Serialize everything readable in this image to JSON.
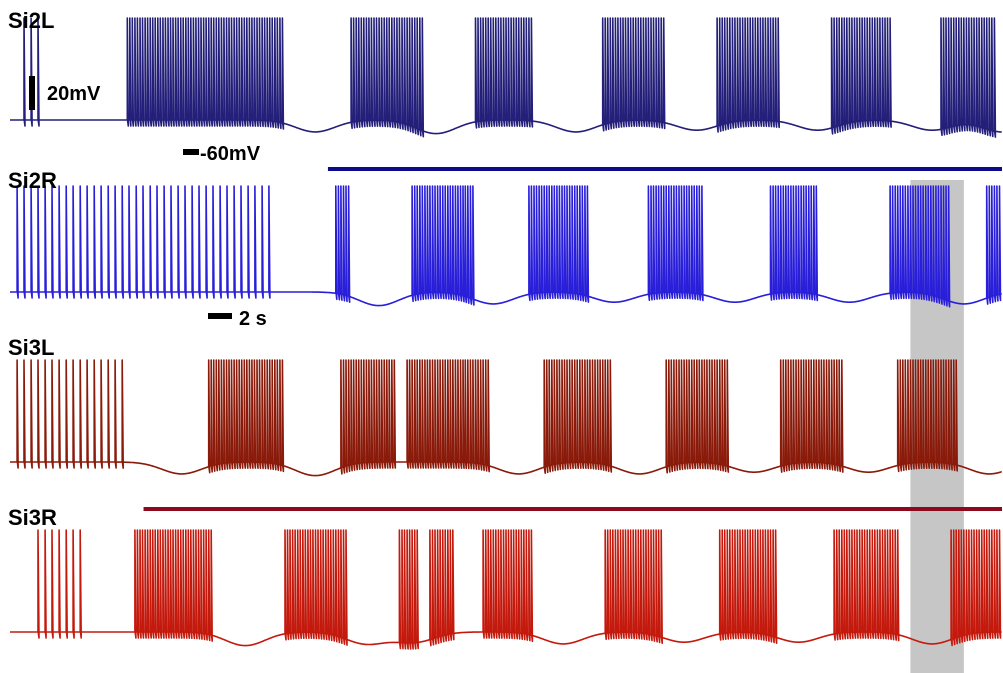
{
  "chart_data": {
    "type": "line",
    "description_units": {
      "x": "s",
      "y": "mV"
    },
    "xlim": [
      0,
      78
    ],
    "scale_bars": {
      "voltage": {
        "label": "20mV",
        "value": 20
      },
      "reference": {
        "label": "-60mV",
        "value": -60
      },
      "time": {
        "label": "2 s",
        "value": 2
      }
    },
    "highlight_window": {
      "x_start": 70.8,
      "x_end": 75.0,
      "color": "#c6c6c6"
    },
    "stimulus_bars": [
      {
        "trace": "Si2L",
        "x_start": 25.0,
        "x_end": 78.0,
        "color": "#0b0b8c"
      },
      {
        "trace": "Si3L",
        "x_start": 10.5,
        "x_end": 78.0,
        "color": "#8b0a1e"
      }
    ],
    "series": [
      {
        "name": "Si2L",
        "color": "#24207a",
        "baseline_mV": -55,
        "tonic": [
          [
            1.0,
            2.5
          ]
        ],
        "bursts": [
          [
            9.2,
            21.5
          ],
          [
            26.8,
            32.6
          ],
          [
            36.5,
            41.2
          ],
          [
            46.5,
            51.6
          ],
          [
            55.5,
            60.6
          ],
          [
            64.5,
            69.3
          ],
          [
            73.2,
            77.5
          ]
        ],
        "troughs": [
          [
            24.0,
            -62
          ],
          [
            33.5,
            -63
          ],
          [
            44.5,
            -62
          ],
          [
            54.0,
            -61
          ],
          [
            63.5,
            -61
          ],
          [
            72.5,
            -61
          ],
          [
            78.0,
            -62
          ]
        ]
      },
      {
        "name": "Si2R",
        "color": "#2a1fd9",
        "baseline_mV": -55,
        "tonic": [
          [
            0.5,
            20.8
          ]
        ],
        "bursts": [
          [
            25.6,
            26.8
          ],
          [
            31.6,
            36.5
          ],
          [
            40.8,
            45.5
          ],
          [
            50.2,
            54.6
          ],
          [
            59.8,
            63.6
          ],
          [
            69.2,
            74.0
          ],
          [
            76.8,
            78.0
          ]
        ],
        "troughs": [
          [
            29.0,
            -63
          ],
          [
            38.0,
            -62
          ],
          [
            47.5,
            -61
          ],
          [
            57.0,
            -61
          ],
          [
            66.0,
            -61
          ],
          [
            75.0,
            -62
          ]
        ]
      },
      {
        "name": "Si3L",
        "color": "#8a1a0a",
        "baseline_mV": -55,
        "tonic": [
          [
            0.5,
            9.2
          ]
        ],
        "bursts": [
          [
            15.6,
            21.5
          ],
          [
            26.0,
            30.3
          ],
          [
            31.2,
            37.8
          ],
          [
            42.0,
            47.4
          ],
          [
            51.6,
            56.5
          ],
          [
            60.5,
            65.5
          ],
          [
            69.8,
            74.5
          ]
        ],
        "troughs": [
          [
            13.5,
            -62
          ],
          [
            24.0,
            -63
          ],
          [
            40.0,
            -62
          ],
          [
            49.5,
            -62
          ],
          [
            58.5,
            -61
          ],
          [
            67.5,
            -61
          ],
          [
            77.0,
            -62
          ]
        ]
      },
      {
        "name": "Si3R",
        "color": "#c41a0d",
        "baseline_mV": -55,
        "tonic": [
          [
            2.0,
            5.8
          ]
        ],
        "bursts": [
          [
            9.8,
            16.0
          ],
          [
            21.5,
            26.5
          ],
          [
            30.5,
            32.2
          ],
          [
            33.0,
            35.0
          ],
          [
            37.2,
            41.2
          ],
          [
            46.8,
            51.3
          ],
          [
            55.8,
            60.3
          ],
          [
            64.8,
            70.0
          ],
          [
            74.0,
            78.0
          ]
        ],
        "troughs": [
          [
            18.5,
            -63
          ],
          [
            28.0,
            -62
          ],
          [
            31.8,
            -61
          ],
          [
            43.5,
            -62
          ],
          [
            53.0,
            -61
          ],
          [
            62.0,
            -61
          ],
          [
            72.5,
            -62
          ]
        ]
      }
    ]
  }
}
